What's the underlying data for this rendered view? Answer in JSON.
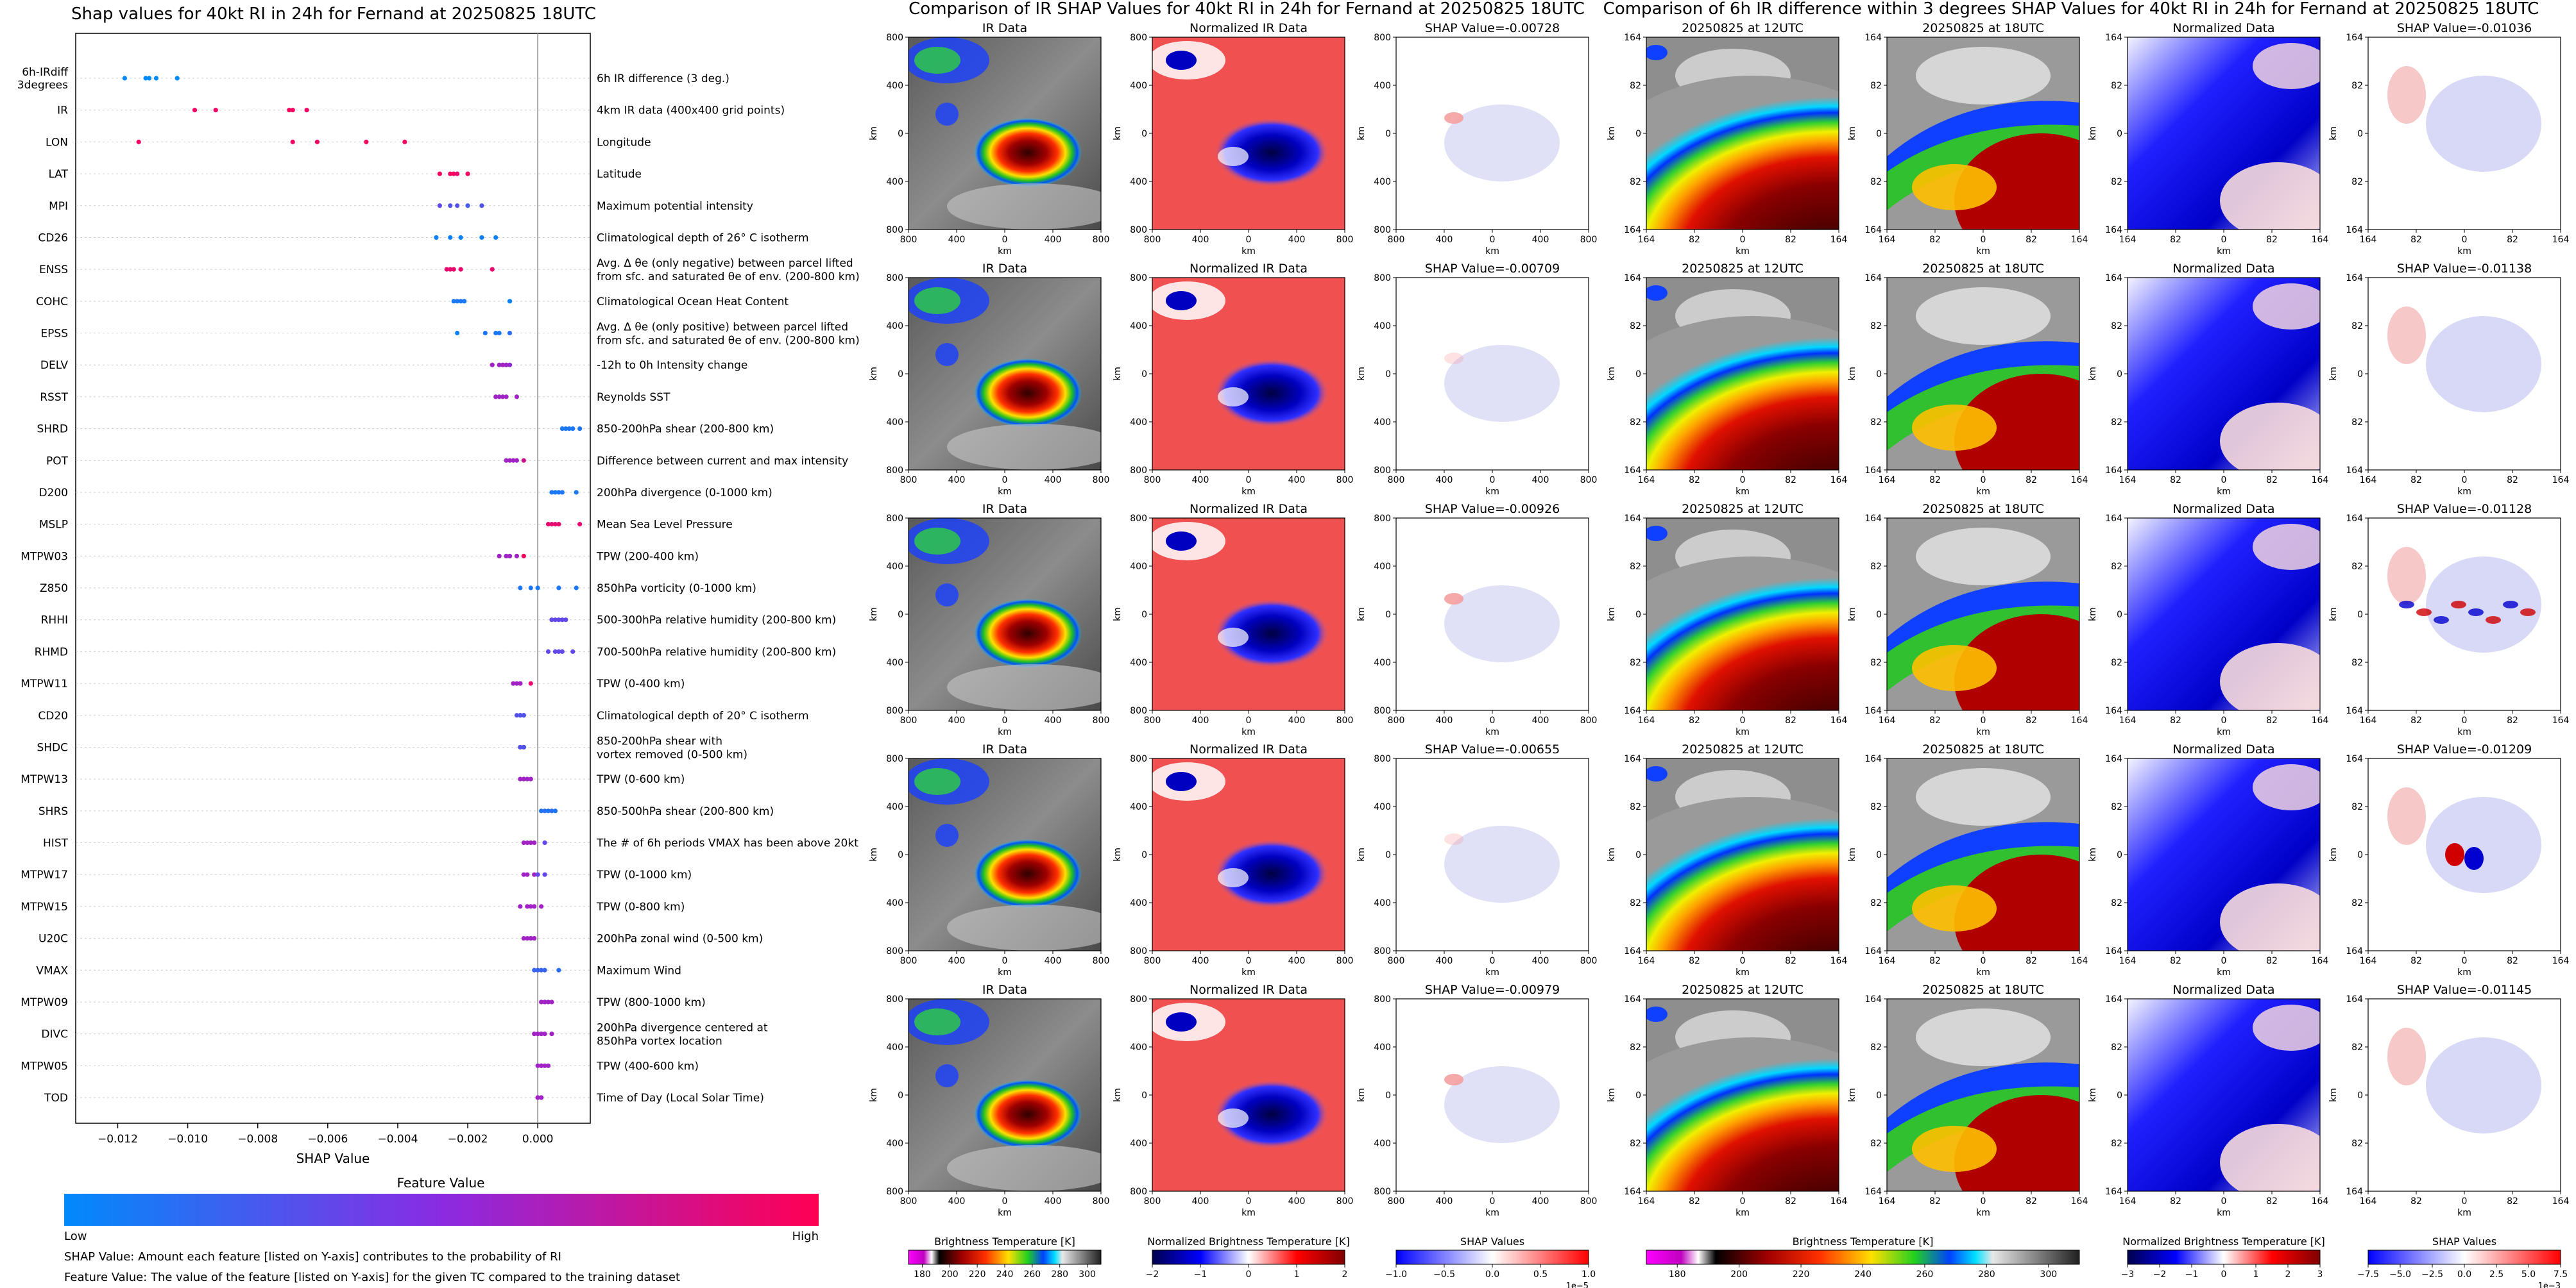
{
  "chart_data": [
    {
      "type": "scatter",
      "title": "Shap values for 40kt RI in 24h for Fernand at 20250825 18UTC",
      "xlabel": "SHAP Value",
      "xlim": [
        -0.0132,
        0.0015
      ],
      "xticks": [
        -0.012,
        -0.01,
        -0.008,
        -0.006,
        -0.004,
        -0.002,
        0.0
      ],
      "xtick_labels": [
        "−0.012",
        "−0.010",
        "−0.008",
        "−0.006",
        "−0.004",
        "−0.002",
        "0.000"
      ],
      "colorbar_title": "Feature Value",
      "colorbar_low": "Low",
      "colorbar_high": "High",
      "low_color": "#008afb",
      "high_color": "#ff0052",
      "features": [
        {
          "name": "6h-IRdiff\n3degrees",
          "desc": "6h IR difference (3 deg.)",
          "points": [
            [
              -0.0118,
              0.0
            ],
            [
              -0.0112,
              0.0
            ],
            [
              -0.0111,
              0.0
            ],
            [
              -0.0109,
              0.0
            ],
            [
              -0.0103,
              0.0
            ]
          ]
        },
        {
          "name": "IR",
          "desc": "4km IR data (400x400 grid points)",
          "points": [
            [
              -0.0098,
              0.95
            ],
            [
              -0.0092,
              0.95
            ],
            [
              -0.0071,
              0.95
            ],
            [
              -0.007,
              0.95
            ],
            [
              -0.0066,
              0.95
            ]
          ]
        },
        {
          "name": "LON",
          "desc": "Longitude",
          "points": [
            [
              -0.0114,
              0.95
            ],
            [
              -0.007,
              0.95
            ],
            [
              -0.0063,
              0.95
            ],
            [
              -0.0049,
              0.95
            ],
            [
              -0.0038,
              0.95
            ]
          ]
        },
        {
          "name": "LAT",
          "desc": "Latitude",
          "points": [
            [
              -0.0028,
              0.95
            ],
            [
              -0.0025,
              0.95
            ],
            [
              -0.0024,
              0.95
            ],
            [
              -0.0023,
              0.9
            ],
            [
              -0.002,
              0.95
            ]
          ]
        },
        {
          "name": "MPI",
          "desc": "Maximum potential intensity",
          "points": [
            [
              -0.0028,
              0.35
            ],
            [
              -0.0025,
              0.3
            ],
            [
              -0.0023,
              0.3
            ],
            [
              -0.002,
              0.25
            ],
            [
              -0.0016,
              0.3
            ]
          ]
        },
        {
          "name": "CD26",
          "desc": "Climatological depth of 26° C isotherm",
          "points": [
            [
              -0.0029,
              0.05
            ],
            [
              -0.0025,
              0.05
            ],
            [
              -0.0022,
              0.05
            ],
            [
              -0.0016,
              0.05
            ],
            [
              -0.0012,
              0.05
            ]
          ]
        },
        {
          "name": "ENSS",
          "desc": "Avg. Δ θe (only negative) between parcel lifted\nfrom sfc. and saturated θe of env. (200-800 km)",
          "points": [
            [
              -0.0026,
              0.9
            ],
            [
              -0.0025,
              0.9
            ],
            [
              -0.0024,
              0.9
            ],
            [
              -0.0022,
              0.9
            ],
            [
              -0.0013,
              0.9
            ]
          ]
        },
        {
          "name": "COHC",
          "desc": "Climatological Ocean Heat Content",
          "points": [
            [
              -0.0024,
              0.1
            ],
            [
              -0.0023,
              0.1
            ],
            [
              -0.0022,
              0.1
            ],
            [
              -0.0021,
              0.1
            ],
            [
              -0.0008,
              0.05
            ]
          ]
        },
        {
          "name": "EPSS",
          "desc": "Avg. Δ θe (only positive) between parcel lifted\nfrom sfc. and saturated θe of env. (200-800 km)",
          "points": [
            [
              -0.0023,
              0.05
            ],
            [
              -0.0015,
              0.1
            ],
            [
              -0.0012,
              0.1
            ],
            [
              -0.0011,
              0.1
            ],
            [
              -0.0008,
              0.15
            ]
          ]
        },
        {
          "name": "DELV",
          "desc": "-12h to 0h Intensity change",
          "points": [
            [
              -0.0013,
              0.6
            ],
            [
              -0.0011,
              0.6
            ],
            [
              -0.001,
              0.6
            ],
            [
              -0.0009,
              0.6
            ],
            [
              -0.0008,
              0.55
            ]
          ]
        },
        {
          "name": "RSST",
          "desc": "Reynolds SST",
          "points": [
            [
              -0.0012,
              0.6
            ],
            [
              -0.0011,
              0.6
            ],
            [
              -0.001,
              0.6
            ],
            [
              -0.0009,
              0.6
            ],
            [
              -0.0006,
              0.6
            ]
          ]
        },
        {
          "name": "SHRD",
          "desc": "850-200hPa shear (200-800 km)",
          "points": [
            [
              0.0007,
              0.1
            ],
            [
              0.0008,
              0.1
            ],
            [
              0.0009,
              0.1
            ],
            [
              0.001,
              0.1
            ],
            [
              0.0012,
              0.1
            ]
          ]
        },
        {
          "name": "POT",
          "desc": "Difference between current and max intensity",
          "points": [
            [
              -0.0009,
              0.6
            ],
            [
              -0.0008,
              0.6
            ],
            [
              -0.0007,
              0.6
            ],
            [
              -0.0006,
              0.6
            ],
            [
              -0.0004,
              0.8
            ]
          ]
        },
        {
          "name": "D200",
          "desc": "200hPa divergence (0-1000 km)",
          "points": [
            [
              0.0004,
              0.1
            ],
            [
              0.0005,
              0.1
            ],
            [
              0.0006,
              0.1
            ],
            [
              0.0007,
              0.1
            ],
            [
              0.0011,
              0.1
            ]
          ]
        },
        {
          "name": "MSLP",
          "desc": "Mean Sea Level Pressure",
          "points": [
            [
              0.0003,
              0.9
            ],
            [
              0.0004,
              0.9
            ],
            [
              0.0005,
              0.9
            ],
            [
              0.0006,
              0.9
            ],
            [
              0.0012,
              0.9
            ]
          ]
        },
        {
          "name": "MTPW03",
          "desc": "TPW (200-400 km)",
          "points": [
            [
              -0.0011,
              0.6
            ],
            [
              -0.0009,
              0.6
            ],
            [
              -0.0008,
              0.6
            ],
            [
              -0.0006,
              0.6
            ],
            [
              -0.0004,
              0.95
            ]
          ]
        },
        {
          "name": "Z850",
          "desc": "850hPa vorticity (0-1000 km)",
          "points": [
            [
              -0.0005,
              0.1
            ],
            [
              -0.0002,
              0.1
            ],
            [
              0.0,
              0.1
            ],
            [
              0.0006,
              0.1
            ],
            [
              0.0011,
              0.1
            ]
          ]
        },
        {
          "name": "RHHI",
          "desc": "500-300hPa relative humidity (200-800 km)",
          "points": [
            [
              0.0004,
              0.35
            ],
            [
              0.0005,
              0.35
            ],
            [
              0.0006,
              0.35
            ],
            [
              0.0007,
              0.35
            ],
            [
              0.0008,
              0.35
            ]
          ]
        },
        {
          "name": "RHMD",
          "desc": "700-500hPa relative humidity (200-800 km)",
          "points": [
            [
              0.0003,
              0.35
            ],
            [
              0.0005,
              0.35
            ],
            [
              0.0006,
              0.35
            ],
            [
              0.0007,
              0.35
            ],
            [
              0.001,
              0.35
            ]
          ]
        },
        {
          "name": "MTPW11",
          "desc": "TPW (0-400 km)",
          "points": [
            [
              -0.0007,
              0.6
            ],
            [
              -0.0006,
              0.6
            ],
            [
              -0.0005,
              0.6
            ],
            [
              -0.0005,
              0.6
            ],
            [
              -0.0002,
              0.9
            ]
          ]
        },
        {
          "name": "CD20",
          "desc": "Climatological depth of 20° C isotherm",
          "points": [
            [
              -0.0006,
              0.3
            ],
            [
              -0.0005,
              0.3
            ],
            [
              -0.0005,
              0.3
            ],
            [
              -0.0004,
              0.3
            ],
            [
              -0.0004,
              0.3
            ]
          ]
        },
        {
          "name": "SHDC",
          "desc": "850-200hPa shear with\nvortex removed (0-500 km)",
          "points": [
            [
              -0.0005,
              0.3
            ],
            [
              -0.0005,
              0.3
            ],
            [
              -0.0004,
              0.3
            ],
            [
              -0.0004,
              0.3
            ],
            [
              -0.0004,
              0.3
            ]
          ]
        },
        {
          "name": "MTPW13",
          "desc": "TPW (0-600 km)",
          "points": [
            [
              -0.0005,
              0.6
            ],
            [
              -0.0004,
              0.6
            ],
            [
              -0.0004,
              0.6
            ],
            [
              -0.0003,
              0.6
            ],
            [
              -0.0002,
              0.6
            ]
          ]
        },
        {
          "name": "SHRS",
          "desc": "850-500hPa shear (200-800 km)",
          "points": [
            [
              0.0001,
              0.1
            ],
            [
              0.0002,
              0.15
            ],
            [
              0.0003,
              0.1
            ],
            [
              0.0004,
              0.15
            ],
            [
              0.0005,
              0.1
            ]
          ]
        },
        {
          "name": "HIST",
          "desc": "The # of 6h periods VMAX has been above 20kt",
          "points": [
            [
              -0.0004,
              0.6
            ],
            [
              -0.0003,
              0.6
            ],
            [
              -0.0002,
              0.6
            ],
            [
              -0.0001,
              0.6
            ],
            [
              0.0002,
              0.35
            ]
          ]
        },
        {
          "name": "MTPW17",
          "desc": "TPW (0-1000 km)",
          "points": [
            [
              -0.0004,
              0.6
            ],
            [
              -0.0003,
              0.6
            ],
            [
              -0.0001,
              0.6
            ],
            [
              0.0,
              0.35
            ],
            [
              0.0002,
              0.35
            ]
          ]
        },
        {
          "name": "MTPW15",
          "desc": "TPW (0-800 km)",
          "points": [
            [
              -0.0005,
              0.6
            ],
            [
              -0.0003,
              0.6
            ],
            [
              -0.0002,
              0.6
            ],
            [
              -0.0001,
              0.6
            ],
            [
              0.0001,
              0.6
            ]
          ]
        },
        {
          "name": "U20C",
          "desc": "200hPa zonal wind (0-500 km)",
          "points": [
            [
              -0.0004,
              0.6
            ],
            [
              -0.0003,
              0.6
            ],
            [
              -0.0002,
              0.6
            ],
            [
              -0.0002,
              0.6
            ],
            [
              -0.0001,
              0.6
            ]
          ]
        },
        {
          "name": "VMAX",
          "desc": "Maximum Wind",
          "points": [
            [
              -0.0001,
              0.2
            ],
            [
              0.0,
              0.2
            ],
            [
              0.0001,
              0.2
            ],
            [
              0.0002,
              0.2
            ],
            [
              0.0006,
              0.15
            ]
          ]
        },
        {
          "name": "MTPW09",
          "desc": "TPW (800-1000 km)",
          "points": [
            [
              0.0001,
              0.6
            ],
            [
              0.0002,
              0.6
            ],
            [
              0.0002,
              0.6
            ],
            [
              0.0003,
              0.6
            ],
            [
              0.0004,
              0.6
            ]
          ]
        },
        {
          "name": "DIVC",
          "desc": "200hPa divergence centered at\n850hPa vortex location",
          "points": [
            [
              -0.0001,
              0.6
            ],
            [
              0.0,
              0.6
            ],
            [
              0.0001,
              0.6
            ],
            [
              0.0002,
              0.6
            ],
            [
              0.0004,
              0.6
            ]
          ]
        },
        {
          "name": "MTPW05",
          "desc": "TPW (400-600 km)",
          "points": [
            [
              0.0,
              0.6
            ],
            [
              0.0001,
              0.6
            ],
            [
              0.0001,
              0.6
            ],
            [
              0.0002,
              0.6
            ],
            [
              0.0003,
              0.6
            ]
          ]
        },
        {
          "name": "TOD",
          "desc": "Time of Day (Local Solar Time)",
          "points": [
            [
              0.0,
              0.6
            ],
            [
              0.0,
              0.6
            ],
            [
              0.0001,
              0.6
            ],
            [
              0.0001,
              0.6
            ],
            [
              0.0001,
              0.6
            ]
          ]
        }
      ]
    },
    {
      "type": "heatmap",
      "title": "Comparison of IR SHAP Values for 40kt RI in 24h for Fernand at 20250825 18UTC",
      "column_titles": [
        "IR Data",
        "Normalized IR Data"
      ],
      "row_shap_titles": [
        "SHAP Value=-0.00728",
        "SHAP Value=-0.00709",
        "SHAP Value=-0.00926",
        "SHAP Value=-0.00655",
        "SHAP Value=-0.00979"
      ],
      "axis_label": "km",
      "tick_labels": [
        "800",
        "400",
        "0",
        "400",
        "800"
      ],
      "colorbars": [
        {
          "label": "Brightness Temperature [K]",
          "ticks": [
            "180",
            "200",
            "220",
            "240",
            "260",
            "280",
            "300"
          ]
        },
        {
          "label": "Normalized Brightness Temperature [K]",
          "ticks": [
            "−2",
            "−1",
            "0",
            "1",
            "2"
          ]
        },
        {
          "label": "SHAP Values",
          "ticks": [
            "−1.0",
            "−0.5",
            "0.0",
            "0.5",
            "1.0"
          ],
          "offset": "1e−5"
        }
      ]
    },
    {
      "type": "heatmap",
      "title": "Comparison of 6h IR difference within 3 degrees SHAP Values for 40kt RI in 24h for Fernand at 20250825 18UTC",
      "column_titles": [
        "20250825 at 12UTC",
        "20250825 at 18UTC",
        "Normalized Data"
      ],
      "row_shap_titles": [
        "SHAP Value=-0.01036",
        "SHAP Value=-0.01138",
        "SHAP Value=-0.01128",
        "SHAP Value=-0.01209",
        "SHAP Value=-0.01145"
      ],
      "axis_label": "km",
      "tick_labels": [
        "164",
        "82",
        "0",
        "82",
        "164"
      ],
      "colorbars": [
        {
          "label": "Brightness Temperature [K]",
          "ticks": [
            "180",
            "200",
            "220",
            "240",
            "260",
            "280",
            "300"
          ]
        },
        {
          "label": "Normalized Brightness Temperature [K]",
          "ticks": [
            "−3",
            "−2",
            "−1",
            "0",
            "1",
            "2",
            "3"
          ]
        },
        {
          "label": "SHAP Values",
          "ticks": [
            "−7.5",
            "−5.0",
            "−2.5",
            "0.0",
            "2.5",
            "5.0",
            "7.5"
          ],
          "offset": "1e−3"
        }
      ]
    }
  ],
  "notes": {
    "line1": "SHAP Value: Amount each feature [listed on Y-axis] contributes to the probability of RI",
    "line2": "Feature Value: The value of the feature [listed on Y-axis] for the given TC compared to the training dataset"
  }
}
